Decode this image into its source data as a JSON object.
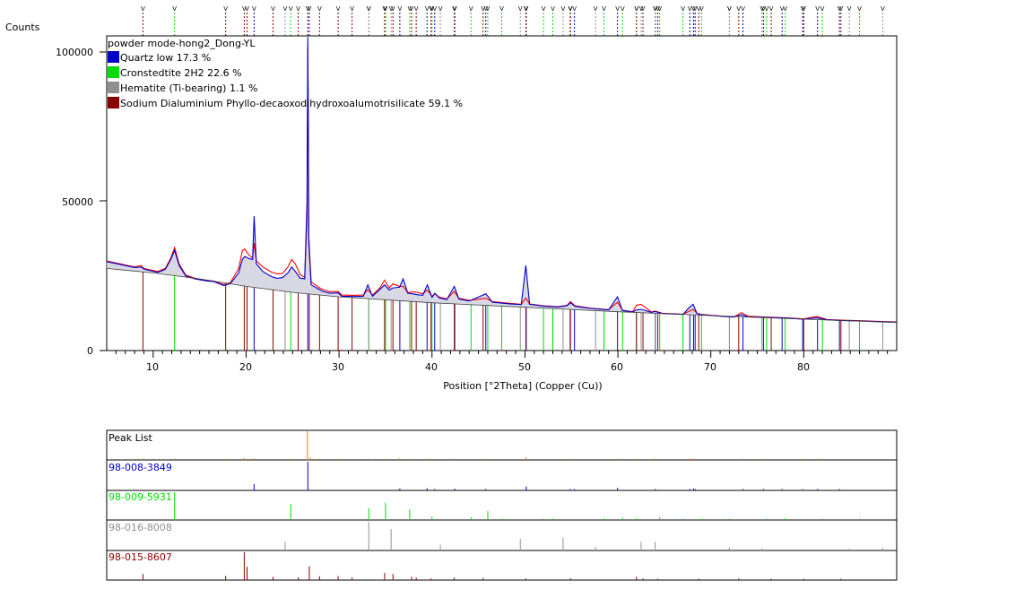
{
  "chart_data": {
    "type": "line",
    "ylabel": "Counts",
    "xlabel": "Position [°2Theta] (Copper (Cu))",
    "xlim": [
      5,
      90
    ],
    "ylim": [
      0,
      105000
    ],
    "x_ticks": [
      10,
      20,
      30,
      40,
      50,
      60,
      70,
      80
    ],
    "y_ticks": [
      0,
      50000,
      100000
    ],
    "sample_name": "powder mode-hong2_Dong-YL",
    "legend_position": "top-left",
    "phases": [
      {
        "name": "Quartz low 17.3 %",
        "color": "#0000cc",
        "ref": "98-008-3849",
        "peaks": [
          [
            20.86,
            22
          ],
          [
            26.64,
            100
          ],
          [
            36.54,
            7
          ],
          [
            39.47,
            8
          ],
          [
            40.29,
            4
          ],
          [
            42.45,
            6
          ],
          [
            45.79,
            4
          ],
          [
            50.14,
            14
          ],
          [
            54.87,
            4
          ],
          [
            55.33,
            2
          ],
          [
            59.96,
            9
          ],
          [
            64.03,
            2
          ],
          [
            67.74,
            5
          ],
          [
            68.14,
            7
          ],
          [
            68.31,
            5
          ],
          [
            73.46,
            2
          ],
          [
            75.66,
            3
          ],
          [
            77.67,
            1
          ],
          [
            79.88,
            2
          ],
          [
            81.48,
            2
          ],
          [
            83.84,
            1
          ]
        ]
      },
      {
        "name": "Cronstedtite 2H2 22.6 %",
        "color": "#00dd00",
        "ref": "98-009-5931",
        "peaks": [
          [
            12.3,
            100
          ],
          [
            24.8,
            58
          ],
          [
            33.2,
            42
          ],
          [
            35.0,
            62
          ],
          [
            37.6,
            38
          ],
          [
            40.0,
            12
          ],
          [
            44.2,
            10
          ],
          [
            46.0,
            32
          ],
          [
            47.5,
            4
          ],
          [
            52.0,
            5
          ],
          [
            53.0,
            3
          ],
          [
            58.5,
            5
          ],
          [
            60.5,
            9
          ],
          [
            62.0,
            7
          ],
          [
            64.5,
            10
          ],
          [
            67.0,
            3
          ],
          [
            69.0,
            5
          ],
          [
            72.0,
            4
          ],
          [
            76.0,
            3
          ],
          [
            78.0,
            6
          ],
          [
            82.0,
            4
          ],
          [
            86.0,
            3
          ]
        ]
      },
      {
        "name": "Hematite (Ti-bearing) 1.1 %",
        "color": "#909090",
        "ref": "98-016-8008",
        "peaks": [
          [
            24.2,
            30
          ],
          [
            33.2,
            100
          ],
          [
            35.6,
            75
          ],
          [
            40.9,
            20
          ],
          [
            49.5,
            40
          ],
          [
            54.1,
            45
          ],
          [
            57.6,
            12
          ],
          [
            62.5,
            30
          ],
          [
            64.0,
            30
          ],
          [
            72.0,
            10
          ],
          [
            75.5,
            8
          ],
          [
            84.9,
            6
          ],
          [
            88.5,
            9
          ]
        ]
      },
      {
        "name": "Sodium Dialuminium Phyllo-decaoxodihydroxoalumotrisilicate 59.1 %",
        "color": "#8b0000",
        "ref": "98-015-8607",
        "peaks": [
          [
            8.9,
            22
          ],
          [
            17.8,
            15
          ],
          [
            19.8,
            100
          ],
          [
            20.1,
            48
          ],
          [
            22.9,
            12
          ],
          [
            25.6,
            10
          ],
          [
            26.8,
            50
          ],
          [
            27.9,
            14
          ],
          [
            29.9,
            15
          ],
          [
            31.4,
            9
          ],
          [
            34.9,
            26
          ],
          [
            35.8,
            22
          ],
          [
            37.8,
            12
          ],
          [
            38.3,
            9
          ],
          [
            39.9,
            6
          ],
          [
            42.4,
            9
          ],
          [
            45.5,
            8
          ],
          [
            50.1,
            6
          ],
          [
            54.9,
            7
          ],
          [
            62.0,
            12
          ],
          [
            62.7,
            6
          ],
          [
            64.3,
            5
          ],
          [
            68.7,
            5
          ],
          [
            73.0,
            6
          ],
          [
            76.5,
            5
          ],
          [
            80.0,
            4
          ],
          [
            84.0,
            4
          ]
        ]
      }
    ],
    "peak_list": {
      "label": "Peak List",
      "color": "#e07a10",
      "peaks": [
        [
          8.9,
          3
        ],
        [
          12.3,
          5
        ],
        [
          17.8,
          2
        ],
        [
          19.8,
          7
        ],
        [
          20.2,
          5
        ],
        [
          20.9,
          6
        ],
        [
          24.7,
          3
        ],
        [
          26.6,
          100
        ],
        [
          26.9,
          9
        ],
        [
          27.9,
          3
        ],
        [
          29.9,
          2
        ],
        [
          33.1,
          3
        ],
        [
          35.0,
          5
        ],
        [
          36.5,
          3
        ],
        [
          37.6,
          2
        ],
        [
          39.5,
          3
        ],
        [
          42.4,
          2
        ],
        [
          45.8,
          2
        ],
        [
          50.1,
          9
        ],
        [
          54.9,
          3
        ],
        [
          60.0,
          3
        ],
        [
          62.0,
          2
        ],
        [
          64.0,
          1
        ],
        [
          67.7,
          2
        ],
        [
          68.1,
          4
        ],
        [
          73.5,
          1
        ],
        [
          75.6,
          1
        ],
        [
          79.9,
          1
        ],
        [
          81.5,
          1
        ]
      ]
    },
    "series": [
      {
        "name": "Observed",
        "color": "#ff0000",
        "x": [
          5,
          8,
          8.7,
          9.0,
          9.4,
          10.5,
          11.3,
          11.9,
          12.3,
          12.8,
          13.5,
          14.5,
          15.8,
          16.5,
          17.0,
          17.6,
          18.3,
          19.2,
          19.6,
          19.85,
          20.3,
          20.7,
          20.86,
          21.1,
          21.8,
          22.7,
          23.3,
          23.9,
          24.5,
          24.9,
          25.3,
          25.8,
          26.3,
          26.55,
          26.64,
          26.75,
          27.0,
          27.9,
          28.3,
          29.0,
          29.9,
          30.3,
          31.5,
          32.6,
          33.1,
          33.6,
          34.4,
          34.9,
          35.4,
          35.8,
          36.5,
          36.9,
          37.4,
          37.9,
          38.4,
          39.0,
          39.5,
          40.0,
          40.3,
          40.8,
          41.6,
          42.4,
          42.9,
          44.0,
          45.8,
          46.5,
          48.5,
          49.6,
          50.1,
          50.5,
          52.0,
          53.5,
          54.5,
          54.9,
          55.4,
          57.0,
          59.0,
          59.96,
          60.5,
          61.6,
          62.0,
          62.5,
          63.6,
          64.0,
          64.8,
          67.0,
          67.7,
          68.1,
          68.5,
          69.0,
          71.0,
          72.5,
          73.3,
          74.0,
          76.0,
          78.0,
          80.0,
          81.4,
          82.5,
          84.0,
          86.0,
          88.0,
          90.0
        ],
        "y": [
          30000,
          28000,
          28500,
          27500,
          27200,
          26500,
          27500,
          31000,
          34500,
          29000,
          25300,
          24200,
          23500,
          23300,
          22700,
          22000,
          22800,
          27500,
          33500,
          34000,
          32000,
          31000,
          36000,
          30000,
          28000,
          26300,
          25700,
          25800,
          28000,
          30500,
          29000,
          25500,
          24500,
          45000,
          102000,
          38000,
          23000,
          21000,
          20400,
          19700,
          19800,
          18600,
          18500,
          18600,
          20400,
          18600,
          21000,
          23600,
          21000,
          22300,
          21500,
          21500,
          19400,
          19700,
          19500,
          19000,
          20200,
          18200,
          19000,
          17900,
          17300,
          19800,
          17500,
          16800,
          17500,
          16400,
          15800,
          15500,
          17600,
          15600,
          15000,
          14700,
          15100,
          16400,
          15000,
          14200,
          13700,
          16200,
          13500,
          13000,
          15200,
          15500,
          12900,
          13200,
          12500,
          12200,
          13200,
          13800,
          12500,
          12100,
          11600,
          11300,
          12700,
          11500,
          11200,
          11000,
          10600,
          11400,
          10400,
          10200,
          10000,
          9800,
          9600
        ]
      },
      {
        "name": "Calculated",
        "color": "#0000cc",
        "x": [
          5,
          8,
          8.7,
          9.0,
          9.4,
          10.5,
          11.3,
          11.9,
          12.3,
          12.8,
          13.5,
          14.5,
          15.8,
          16.5,
          17.0,
          17.6,
          18.3,
          19.2,
          19.6,
          19.85,
          20.3,
          20.7,
          20.86,
          21.1,
          21.8,
          22.7,
          23.3,
          23.9,
          24.5,
          24.9,
          25.3,
          25.8,
          26.3,
          26.55,
          26.64,
          26.75,
          27.0,
          27.9,
          28.3,
          29.0,
          29.9,
          30.3,
          31.5,
          32.6,
          33.1,
          33.6,
          34.4,
          34.9,
          35.4,
          35.8,
          36.5,
          36.9,
          37.4,
          37.9,
          38.4,
          39.0,
          39.5,
          40.0,
          40.3,
          40.8,
          41.6,
          42.4,
          42.9,
          44.0,
          45.8,
          46.5,
          48.5,
          49.6,
          50.1,
          50.5,
          52.0,
          53.5,
          54.5,
          54.9,
          55.4,
          57.0,
          59.0,
          59.96,
          60.5,
          61.6,
          62.0,
          62.5,
          63.6,
          64.0,
          64.8,
          67.0,
          67.7,
          68.1,
          68.5,
          69.0,
          71.0,
          72.5,
          73.3,
          74.0,
          76.0,
          78.0,
          80.0,
          81.4,
          82.5,
          84.0,
          86.0,
          88.0,
          90.0
        ],
        "y": [
          29800,
          27800,
          28000,
          27300,
          27000,
          26200,
          27200,
          30500,
          33500,
          28500,
          25000,
          24000,
          23300,
          23100,
          22500,
          21800,
          22400,
          26000,
          30500,
          31500,
          30800,
          30500,
          45000,
          29000,
          26500,
          24800,
          24200,
          24400,
          26000,
          28000,
          26500,
          24300,
          24000,
          50000,
          105000,
          36000,
          22000,
          20400,
          19800,
          19200,
          19300,
          18200,
          18100,
          18200,
          22000,
          18200,
          20500,
          22000,
          20300,
          21000,
          21200,
          24000,
          19200,
          19000,
          18700,
          18500,
          22000,
          17800,
          19200,
          17600,
          17100,
          21500,
          17200,
          16600,
          19000,
          16200,
          15600,
          15400,
          28500,
          15500,
          14900,
          14600,
          15000,
          16000,
          14800,
          14100,
          13600,
          18000,
          13400,
          12900,
          13600,
          13800,
          12800,
          13100,
          12400,
          12100,
          14500,
          15500,
          12400,
          12000,
          11500,
          11200,
          12000,
          11300,
          11100,
          10900,
          10500,
          11000,
          10300,
          10100,
          9900,
          9700,
          9500
        ]
      },
      {
        "name": "Background",
        "color": "#404040",
        "x": [
          5,
          10,
          15,
          20,
          25,
          30,
          40,
          50,
          60,
          70,
          80,
          90
        ],
        "y": [
          27500,
          26000,
          24000,
          21500,
          19500,
          18000,
          16000,
          14500,
          13000,
          11700,
          10500,
          9400
        ]
      }
    ],
    "top_ticks_label": "V"
  },
  "panels": {
    "peak_list_label": "Peak List",
    "ref1": "98-008-3849",
    "ref2": "98-009-5931",
    "ref3": "98-016-8008",
    "ref4": "98-015-8607"
  },
  "labels": {
    "counts": "Counts",
    "y100k": "100000",
    "y50k": "50000",
    "y0": "0",
    "xlabel": "Position [°2Theta] (Copper (Cu))",
    "legend_title": "powder mode-hong2_Dong-YL",
    "legend_1": "Quartz low 17.3 %",
    "legend_2": "Cronstedtite 2H2 22.6 %",
    "legend_3": "Hematite (Ti-bearing) 1.1 %",
    "legend_4": "Sodium Dialuminium Phyllo-decaoxodihydroxoalumotrisilicate 59.1 %",
    "x10": "10",
    "x20": "20",
    "x30": "30",
    "x40": "40",
    "x50": "50",
    "x60": "60",
    "x70": "70",
    "x80": "80"
  },
  "colors": {
    "quartz": "#0000cc",
    "cronstedtite": "#00dd00",
    "hematite": "#909090",
    "sodium": "#8b0000",
    "observed": "#ff0000",
    "calculated": "#0000cc",
    "peaklist": "#e07a10",
    "fill": "#c8c8d8"
  }
}
